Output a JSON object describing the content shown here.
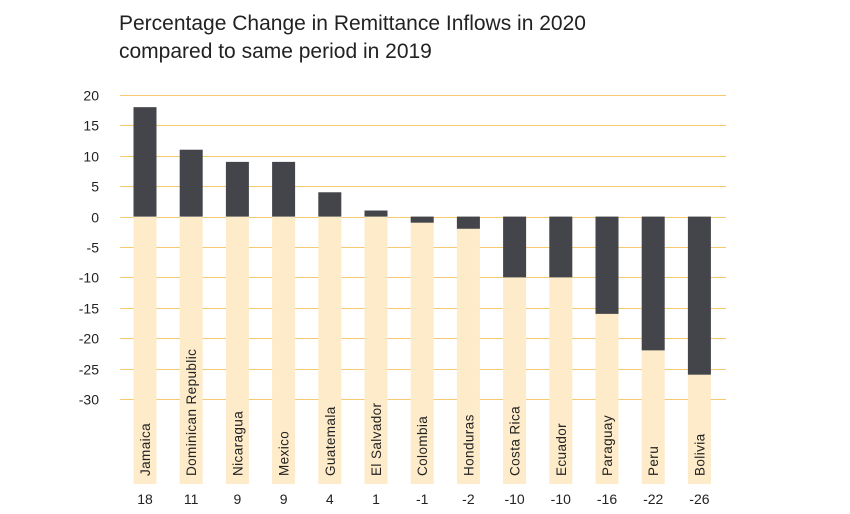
{
  "chart_data": {
    "type": "bar",
    "title_lines": [
      "Percentage Change in Remittance Inflows in 2020",
      "compared to same period in 2019"
    ],
    "categories": [
      "Jamaica",
      "Dominican Republic",
      "Nicaragua",
      "Mexico",
      "Guatemala",
      "El Salvador",
      "Colombia",
      "Honduras",
      "Costa Rica",
      "Ecuador",
      "Paraguay",
      "Peru",
      "Bolivia"
    ],
    "values": [
      18,
      11,
      9,
      9,
      4,
      1,
      -1,
      -2,
      -10,
      -10,
      -16,
      -22,
      -26
    ],
    "value_labels": [
      "18",
      "11",
      "9",
      "9",
      "4",
      "1",
      "-1",
      "-2",
      "-10",
      "-10",
      "-16",
      "-22",
      "-26"
    ],
    "ylim": [
      -30,
      20
    ],
    "yticks": [
      20,
      15,
      10,
      5,
      0,
      -5,
      -10,
      -15,
      -20,
      -25,
      -30
    ],
    "grid": true,
    "colors": {
      "bar": "#43454a",
      "background_bar": "#fdebc9",
      "gridline": "#f5c970",
      "text": "#222222"
    }
  }
}
